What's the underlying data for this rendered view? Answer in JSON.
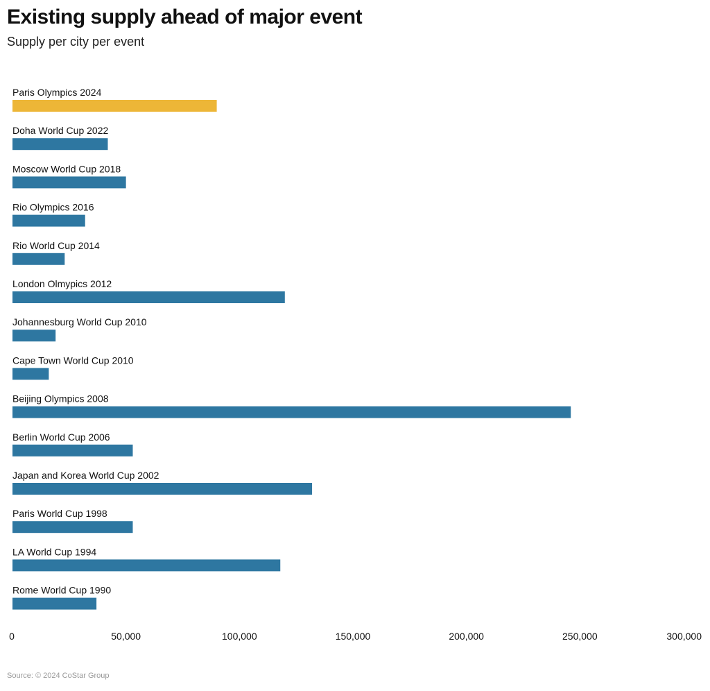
{
  "chart_data": {
    "type": "bar",
    "orientation": "horizontal",
    "title": "Existing supply ahead of major event",
    "subtitle": "Supply per city per event",
    "categories": [
      "Paris Olympics 2024",
      "Doha World Cup 2022",
      "Moscow World Cup 2018",
      "Rio Olympics 2016",
      "Rio World Cup 2014",
      "London Olmypics 2012",
      "Johannesburg World Cup 2010",
      "Cape Town World Cup 2010",
      "Beijing Olympics 2008",
      "Berlin World Cup 2006",
      "Japan and Korea World Cup 2002",
      "Paris World Cup 1998",
      "LA World Cup 1994",
      "Rome World Cup 1990"
    ],
    "values": [
      90000,
      42000,
      50000,
      32000,
      23000,
      120000,
      19000,
      16000,
      246000,
      53000,
      132000,
      53000,
      118000,
      37000
    ],
    "highlight_index": 0,
    "xlim": [
      0,
      300000
    ],
    "xticks": [
      0,
      50000,
      100000,
      150000,
      200000,
      250000,
      300000
    ],
    "xtick_labels": [
      "0",
      "50,000",
      "100,000",
      "150,000",
      "200,000",
      "250,000",
      "300,000"
    ],
    "colors": {
      "highlight": "#EDB637",
      "default": "#2E77A1"
    },
    "grid": false,
    "source": "Source: © 2024 CoStar Group"
  }
}
